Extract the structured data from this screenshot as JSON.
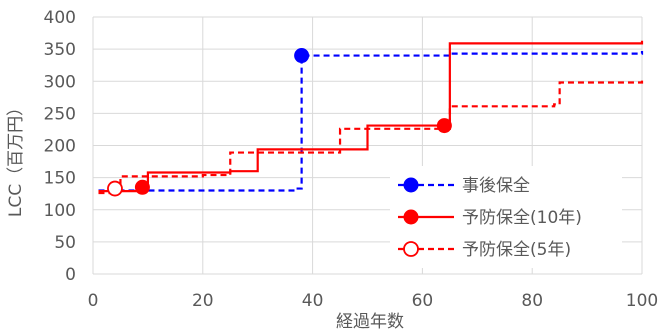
{
  "chart_data": {
    "type": "line",
    "title": "",
    "xlabel": "経過年数",
    "ylabel": "LCC（百万円）",
    "xlim": [
      0,
      100
    ],
    "ylim": [
      0,
      400
    ],
    "x_ticks": [
      0,
      20,
      40,
      60,
      80,
      100
    ],
    "y_ticks": [
      0,
      50,
      100,
      150,
      200,
      250,
      300,
      350,
      400
    ],
    "grid": true,
    "legend_position": "right-inside",
    "series": [
      {
        "name": "事後保全",
        "color": "#0000ff",
        "line_style": "dashed",
        "marker": "filled-circle",
        "marker_points": [
          [
            38,
            340
          ]
        ],
        "points": [
          [
            1,
            130
          ],
          [
            37,
            133
          ],
          [
            38,
            340
          ],
          [
            65,
            343
          ],
          [
            100,
            347
          ]
        ]
      },
      {
        "name": "予防保全(10年)",
        "color": "#ff0000",
        "line_style": "solid",
        "marker": "filled-circle",
        "marker_points": [
          [
            9,
            135
          ],
          [
            64,
            231
          ]
        ],
        "points": [
          [
            1,
            129
          ],
          [
            9,
            133
          ],
          [
            10,
            158
          ],
          [
            25,
            160
          ],
          [
            30,
            194
          ],
          [
            50,
            197
          ],
          [
            50,
            231
          ],
          [
            64,
            233
          ],
          [
            65,
            359
          ],
          [
            100,
            363
          ]
        ]
      },
      {
        "name": "予防保全(5年)",
        "color": "#ff0000",
        "line_style": "dashed",
        "marker": "open-circle",
        "marker_points": [
          [
            4,
            133
          ]
        ],
        "points": [
          [
            1,
            126
          ],
          [
            4,
            130
          ],
          [
            5,
            152
          ],
          [
            20,
            154
          ],
          [
            25,
            189
          ],
          [
            45,
            192
          ],
          [
            45,
            226
          ],
          [
            65,
            229
          ],
          [
            65,
            261
          ],
          [
            84,
            264
          ],
          [
            85,
            298
          ],
          [
            100,
            301
          ]
        ]
      }
    ]
  },
  "colors": {
    "grid": "#d9d9d9",
    "text": "#595959",
    "legend_bg": "#ffffff"
  }
}
